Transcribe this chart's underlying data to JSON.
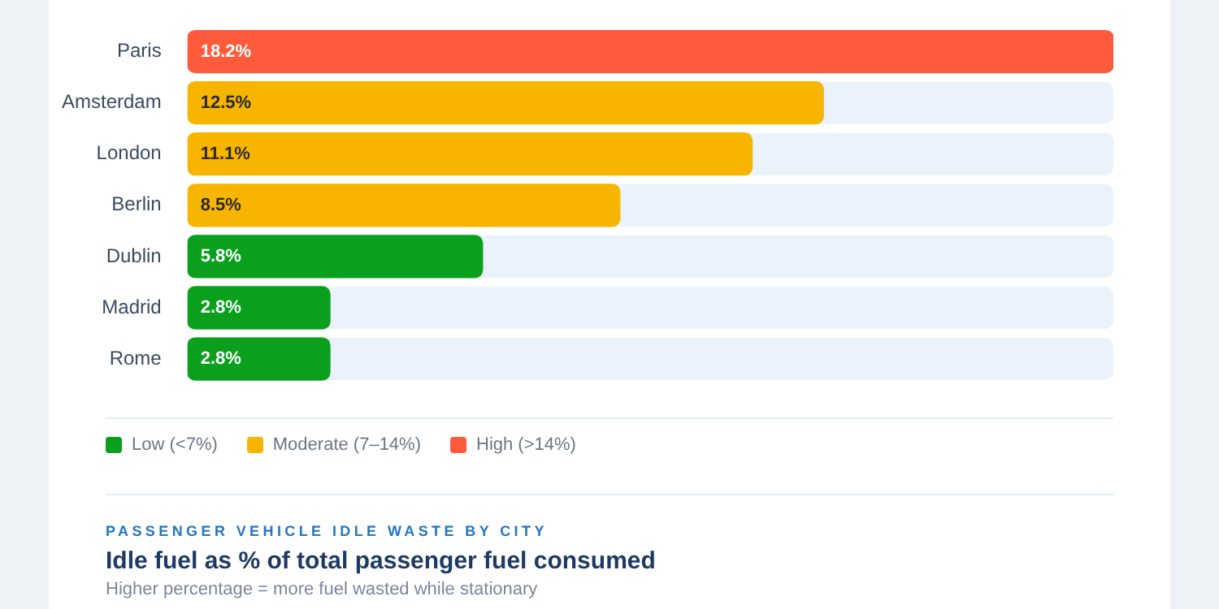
{
  "chart_data": {
    "type": "bar",
    "orientation": "horizontal",
    "stacked": true,
    "title": "Idle fuel as % of total passenger fuel consumed",
    "subtitle": "Higher percentage = more fuel wasted while stationary",
    "annotations": [
      "PASSENGER VEHICLE IDLE WASTE BY CITY"
    ],
    "categories": [
      "Paris",
      "Amsterdam",
      "London",
      "Berlin",
      "Dublin",
      "Madrid",
      "Rome"
    ],
    "series": [
      {
        "name": "Low (<7%)",
        "color": "#0aa01e",
        "values": [
          null,
          null,
          null,
          null,
          5.8,
          2.8,
          2.8
        ],
        "value_labels": [
          null,
          null,
          null,
          null,
          "5.8%",
          "2.8%",
          "2.8%"
        ]
      },
      {
        "name": "Moderate (7–14%)",
        "color": "#f7b500",
        "values": [
          null,
          12.5,
          11.1,
          8.5,
          null,
          null,
          null
        ],
        "value_labels": [
          null,
          "12.5%",
          "11.1%",
          "8.5%",
          null,
          null,
          null
        ]
      },
      {
        "name": "High (>14%)",
        "color": "#ff5a3c",
        "values": [
          18.2,
          null,
          null,
          null,
          null,
          null,
          null
        ],
        "value_labels": [
          "18.2%",
          null,
          null,
          null,
          null,
          null,
          null
        ]
      }
    ],
    "legend": "bottom"
  }
}
